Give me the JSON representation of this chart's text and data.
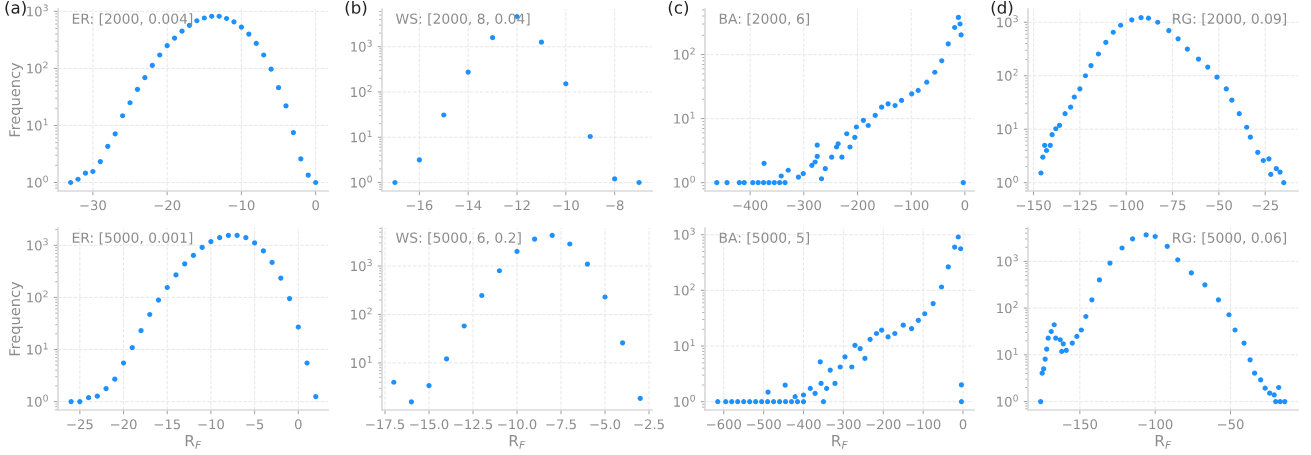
{
  "chart_data": [
    {
      "type": "scatter",
      "ylabel": "Frequency",
      "annotations": [
        "(a)",
        "ER: [2000, 0.004]"
      ],
      "log": "y",
      "grid": true,
      "marker": "circle",
      "xlim": [
        -34.7,
        1.66
      ],
      "ylim": [
        0.71,
        1100
      ],
      "xticks": [
        -30,
        -20,
        -10,
        0
      ],
      "yticks": [
        {
          "value": 1,
          "label": "10$^{0}$"
        },
        {
          "value": 10,
          "label": "10$^{1}$"
        },
        {
          "value": 100,
          "label": "10$^{2}$"
        },
        {
          "value": 1000,
          "label": "10$^{3}$"
        }
      ],
      "series": [
        {
          "color": "#1e90ff",
          "x": [
            -33,
            -32,
            -31,
            -30,
            -29,
            -28,
            -27,
            -26,
            -25,
            -24,
            -23,
            -22,
            -21,
            -20,
            -19,
            -18,
            -17,
            -16,
            -15,
            -14,
            -13,
            -12,
            -11,
            -10,
            -9,
            -8,
            -7,
            -6,
            -5,
            -4,
            -3,
            -2,
            -1,
            0
          ],
          "values": [
            1,
            1.14,
            1.46,
            1.56,
            2.33,
            4.3,
            7.1,
            14.8,
            25,
            43,
            69,
            113,
            172,
            250,
            340,
            450,
            570,
            685,
            765,
            820,
            820,
            750,
            655,
            530,
            400,
            275,
            172,
            97,
            46,
            22,
            7.5,
            2.6,
            1.35,
            1
          ]
        }
      ]
    },
    {
      "type": "scatter",
      "annotations": [
        "(b)",
        "WS: [2000, 8, 0.04]"
      ],
      "log": "y",
      "grid": true,
      "marker": "circle",
      "xlim": [
        -17.53,
        -6.47
      ],
      "ylim": [
        0.65,
        6800
      ],
      "xticks": [
        -16,
        -14,
        -12,
        -10,
        -8
      ],
      "yticks": [
        {
          "value": 1,
          "label": "10$^{0}$"
        },
        {
          "value": 10,
          "label": "10$^{1}$"
        },
        {
          "value": 100,
          "label": "10$^{2}$"
        },
        {
          "value": 1000,
          "label": "10$^{3}$"
        }
      ],
      "series": [
        {
          "color": "#1e90ff",
          "x": [
            -17,
            -16,
            -15,
            -14,
            -13,
            -12,
            -11,
            -10,
            -9,
            -8,
            -7
          ],
          "values": [
            1,
            3.16,
            31,
            275,
            1580,
            4650,
            1260,
            152,
            10.4,
            1.2,
            1
          ]
        }
      ]
    },
    {
      "type": "scatter",
      "annotations": [
        "(c)",
        "BA: [2000, 6]"
      ],
      "log": "y",
      "grid": true,
      "marker": "circle",
      "xlim": [
        -484,
        17
      ],
      "ylim": [
        0.74,
        515
      ],
      "xticks": [
        -400,
        -300,
        -200,
        -100,
        0
      ],
      "yticks": [
        {
          "value": 1,
          "label": "10$^{0}$"
        },
        {
          "value": 10,
          "label": "10$^{1}$"
        },
        {
          "value": 100,
          "label": "10$^{2}$"
        }
      ],
      "series": [
        {
          "color": "#1e90ff",
          "x": [
            -462,
            -443,
            -420,
            -411,
            -395,
            -385,
            -375,
            -365,
            -355,
            -345,
            -335,
            -374,
            -342,
            -329,
            -310,
            -301,
            -285,
            -279,
            -275,
            -275,
            -267,
            -260,
            -248,
            -239,
            -236,
            -229,
            -220,
            -214,
            -205,
            -202,
            -189,
            -180,
            -167,
            -155,
            -143,
            -130,
            -118,
            -99,
            -87,
            -71,
            -56,
            -43,
            -31,
            -19,
            -12,
            -9,
            -7,
            -3
          ],
          "values": [
            1,
            1,
            1,
            1,
            1,
            1,
            1,
            1,
            1,
            1,
            1,
            2.0,
            1.27,
            1.56,
            1.22,
            1.38,
            1.86,
            2.1,
            3.86,
            2.57,
            1.15,
            1.65,
            2.5,
            3.6,
            4.05,
            2.5,
            5.8,
            3.6,
            5.1,
            7.4,
            9.4,
            7.8,
            11.2,
            15.1,
            17,
            16,
            19.2,
            24.4,
            27.5,
            37,
            53,
            80,
            147,
            265,
            380,
            300,
            203,
            1
          ]
        }
      ]
    },
    {
      "type": "scatter",
      "annotations": [
        "(d)",
        "RG: [2000, 0.09]"
      ],
      "log": "y",
      "grid": true,
      "marker": "circle",
      "xlim": [
        -153,
        -7.3
      ],
      "ylim": [
        0.7,
        1770
      ],
      "xticks": [
        -150,
        -125,
        -100,
        -75,
        -50,
        -25
      ],
      "yticks": [
        {
          "value": 1,
          "label": "10$^{0}$"
        },
        {
          "value": 10,
          "label": "10$^{1}$"
        },
        {
          "value": 100,
          "label": "10$^{2}$"
        },
        {
          "value": 1000,
          "label": "10$^{3}$"
        }
      ],
      "series": [
        {
          "color": "#1e90ff",
          "x": [
            -146,
            -145,
            -144,
            -143,
            -141,
            -140,
            -138,
            -136,
            -133,
            -130,
            -128,
            -125,
            -122,
            -119,
            -115,
            -111,
            -107,
            -103,
            -97,
            -92,
            -88,
            -83,
            -77,
            -72,
            -67,
            -61,
            -56,
            -51,
            -46,
            -43,
            -39,
            -35,
            -33,
            -29,
            -26,
            -23,
            -22,
            -19,
            -17,
            -15
          ],
          "values": [
            1.52,
            3.0,
            5.0,
            4.0,
            5.0,
            7.9,
            10.2,
            11.8,
            19.5,
            25.9,
            40,
            57,
            100,
            155,
            255,
            420,
            650,
            880,
            1110,
            1220,
            1190,
            1000,
            700,
            490,
            315,
            205,
            145,
            94,
            57,
            35,
            19.5,
            10.9,
            7.1,
            3.7,
            2.6,
            2.8,
            1.43,
            1.83,
            1.58,
            1
          ]
        }
      ]
    },
    {
      "type": "scatter",
      "ylabel": "Frequency",
      "xlabel": "R$_{F}$",
      "annotations": [
        "ER: [5000, 0.001]"
      ],
      "log": "y",
      "grid": true,
      "marker": "circle",
      "xlim": [
        -27.5,
        3.4
      ],
      "ylim": [
        0.69,
        2150
      ],
      "xticks": [
        -25,
        -20,
        -15,
        -10,
        -5,
        0
      ],
      "yticks": [
        {
          "value": 1,
          "label": "10$^{0}$"
        },
        {
          "value": 10,
          "label": "10$^{1}$"
        },
        {
          "value": 100,
          "label": "10$^{2}$"
        },
        {
          "value": 1000,
          "label": "10$^{3}$"
        }
      ],
      "series": [
        {
          "color": "#1e90ff",
          "x": [
            -26,
            -25,
            -24,
            -23,
            -22,
            -21,
            -20,
            -19,
            -18,
            -17,
            -16,
            -15,
            -14,
            -13,
            -12,
            -11,
            -10,
            -9,
            -8,
            -7,
            -6,
            -5,
            -4,
            -3,
            -2,
            -1,
            0,
            1,
            2
          ],
          "values": [
            1,
            1,
            1.19,
            1.27,
            1.78,
            2.7,
            5.5,
            10.9,
            23,
            47,
            89,
            155,
            270,
            440,
            640,
            910,
            1180,
            1400,
            1550,
            1550,
            1400,
            1110,
            780,
            470,
            235,
            95,
            27,
            5.5,
            1.25
          ]
        }
      ]
    },
    {
      "type": "scatter",
      "xlabel": "R$_{F}$",
      "annotations": [
        "WS: [5000, 6, 0.2]"
      ],
      "log": "y",
      "grid": true,
      "marker": "circle",
      "xlim": [
        -17.67,
        -2.33
      ],
      "ylim": [
        1.07,
        6100
      ],
      "xticks": [
        -17.5,
        {
          "value": -15,
          "label": "−15.0"
        },
        -12.5,
        {
          "value": -10,
          "label": "−10.0"
        },
        -7.5,
        {
          "value": -5,
          "label": "−5.0"
        },
        -2.5
      ],
      "yticks": [
        {
          "value": 10,
          "label": "10$^{1}$"
        },
        {
          "value": 100,
          "label": "10$^{2}$"
        },
        {
          "value": 1000,
          "label": "10$^{3}$"
        }
      ],
      "series": [
        {
          "color": "#1e90ff",
          "x": [
            -17,
            -16,
            -15,
            -14,
            -13,
            -12,
            -11,
            -10,
            -9,
            -8,
            -7,
            -6,
            -5,
            -4,
            -3
          ],
          "values": [
            4.0,
            1.58,
            3.4,
            12.1,
            58,
            247,
            800,
            2000,
            3600,
            4300,
            2850,
            1100,
            230,
            26,
            1.86
          ]
        }
      ]
    },
    {
      "type": "scatter",
      "xlabel": "R$_{F}$",
      "annotations": [
        "BA: [5000, 5]"
      ],
      "log": "y",
      "grid": true,
      "marker": "circle",
      "xlim": [
        -647,
        27.5
      ],
      "ylim": [
        0.71,
        1320
      ],
      "xticks": [
        -600,
        -500,
        -400,
        -300,
        -200,
        -100,
        0
      ],
      "yticks": [
        {
          "value": 1,
          "label": "10$^{0}$"
        },
        {
          "value": 10,
          "label": "10$^{1}$"
        },
        {
          "value": 100,
          "label": "10$^{2}$"
        },
        {
          "value": 1000,
          "label": "10$^{3}$"
        }
      ],
      "series": [
        {
          "color": "#1e90ff",
          "x": [
            -615,
            -595,
            -580,
            -565,
            -550,
            -535,
            -520,
            -505,
            -490,
            -475,
            -460,
            -445,
            -430,
            -415,
            -400,
            -489,
            -446,
            -421,
            -400,
            -383,
            -371,
            -358,
            -356,
            -350,
            -342,
            -333,
            -321,
            -308,
            -296,
            -279,
            -271,
            -258,
            -246,
            -233,
            -217,
            -204,
            -188,
            -171,
            -150,
            -129,
            -112,
            -96,
            -75,
            -54,
            -37,
            -21,
            -12,
            -6,
            -4,
            -4
          ],
          "values": [
            1,
            1,
            1,
            1,
            1,
            1,
            1,
            1,
            1,
            1,
            1,
            1,
            1,
            1,
            1,
            1.49,
            1.99,
            1.23,
            1.32,
            1.73,
            1.41,
            5.2,
            2.13,
            1,
            1.73,
            3.7,
            2.13,
            4.2,
            6.4,
            4.2,
            10.3,
            9.0,
            6.0,
            13.2,
            16.8,
            19.3,
            14.6,
            16.8,
            23.7,
            20.6,
            29,
            38,
            58,
            115,
            265,
            600,
            910,
            560,
            2.0,
            1
          ]
        }
      ]
    },
    {
      "type": "scatter",
      "xlabel": "R$_{F}$",
      "annotations": [
        "RG: [5000, 0.06]"
      ],
      "log": "y",
      "grid": true,
      "marker": "circle",
      "xlim": [
        -184.4,
        -5.2
      ],
      "ylim": [
        0.66,
        5170
      ],
      "xticks": [
        -150,
        -100,
        -50
      ],
      "yticks": [
        {
          "value": 1,
          "label": "10$^{0}$"
        },
        {
          "value": 10,
          "label": "10$^{1}$"
        },
        {
          "value": 100,
          "label": "10$^{2}$"
        },
        {
          "value": 1000,
          "label": "10$^{3}$"
        }
      ],
      "series": [
        {
          "color": "#1e90ff",
          "x": [
            -176,
            -175,
            -174,
            -173,
            -172,
            -171,
            -169,
            -167,
            -166,
            -163,
            -161,
            -162,
            -159,
            -155,
            -152,
            -149,
            -146,
            -142,
            -137,
            -130,
            -122,
            -115,
            -106,
            -100,
            -92,
            -85,
            -76,
            -67,
            -58,
            -51,
            -47,
            -41,
            -37,
            -34,
            -30,
            -27,
            -24,
            -21,
            -20,
            -18,
            -17,
            -14
          ],
          "values": [
            1,
            4.05,
            5.0,
            8.1,
            13.2,
            22.7,
            31.5,
            44,
            22.7,
            21,
            17.2,
            11.8,
            12.4,
            17.8,
            24.7,
            34,
            66,
            150,
            400,
            920,
            1930,
            3020,
            3700,
            3400,
            2100,
            1080,
            565,
            315,
            150,
            72,
            34,
            17.8,
            7.8,
            4.05,
            2.9,
            1.93,
            1.51,
            1.39,
            1,
            2.0,
            1,
            1
          ]
        }
      ]
    }
  ]
}
